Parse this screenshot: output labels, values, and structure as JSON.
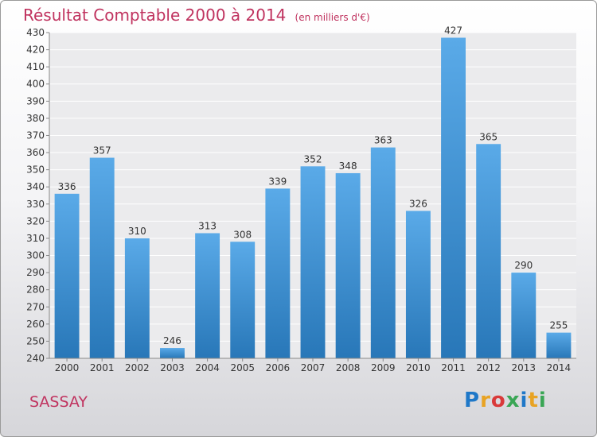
{
  "header": {
    "title": "Résultat Comptable 2000 à 2014",
    "unit_note": "(en milliers d'€)"
  },
  "footer": {
    "place": "SASSAY",
    "logo_text": "Proxiti",
    "logo_colors": [
      "#1f78c8",
      "#e8a323",
      "#d93a3a",
      "#3aa655",
      "#1f78c8",
      "#e8a323",
      "#3aa655"
    ]
  },
  "colors": {
    "bar_light": "#5aaae8",
    "bar_dark": "#2877b8",
    "accent": "#c0335f",
    "grid": "#ffffff",
    "plot_bg": "#ebebed"
  },
  "chart_data": {
    "type": "bar",
    "title": "Résultat Comptable 2000 à 2014",
    "subtitle": "(en milliers d'€)",
    "categories": [
      "2000",
      "2001",
      "2002",
      "2003",
      "2004",
      "2005",
      "2006",
      "2007",
      "2008",
      "2009",
      "2010",
      "2011",
      "2012",
      "2013",
      "2014"
    ],
    "values": [
      336,
      357,
      310,
      246,
      313,
      308,
      339,
      352,
      348,
      363,
      326,
      427,
      365,
      290,
      255
    ],
    "ylim": [
      240,
      430
    ],
    "ytick_step": 10,
    "grid": true,
    "legend": "none",
    "xlabel": "",
    "ylabel": ""
  }
}
